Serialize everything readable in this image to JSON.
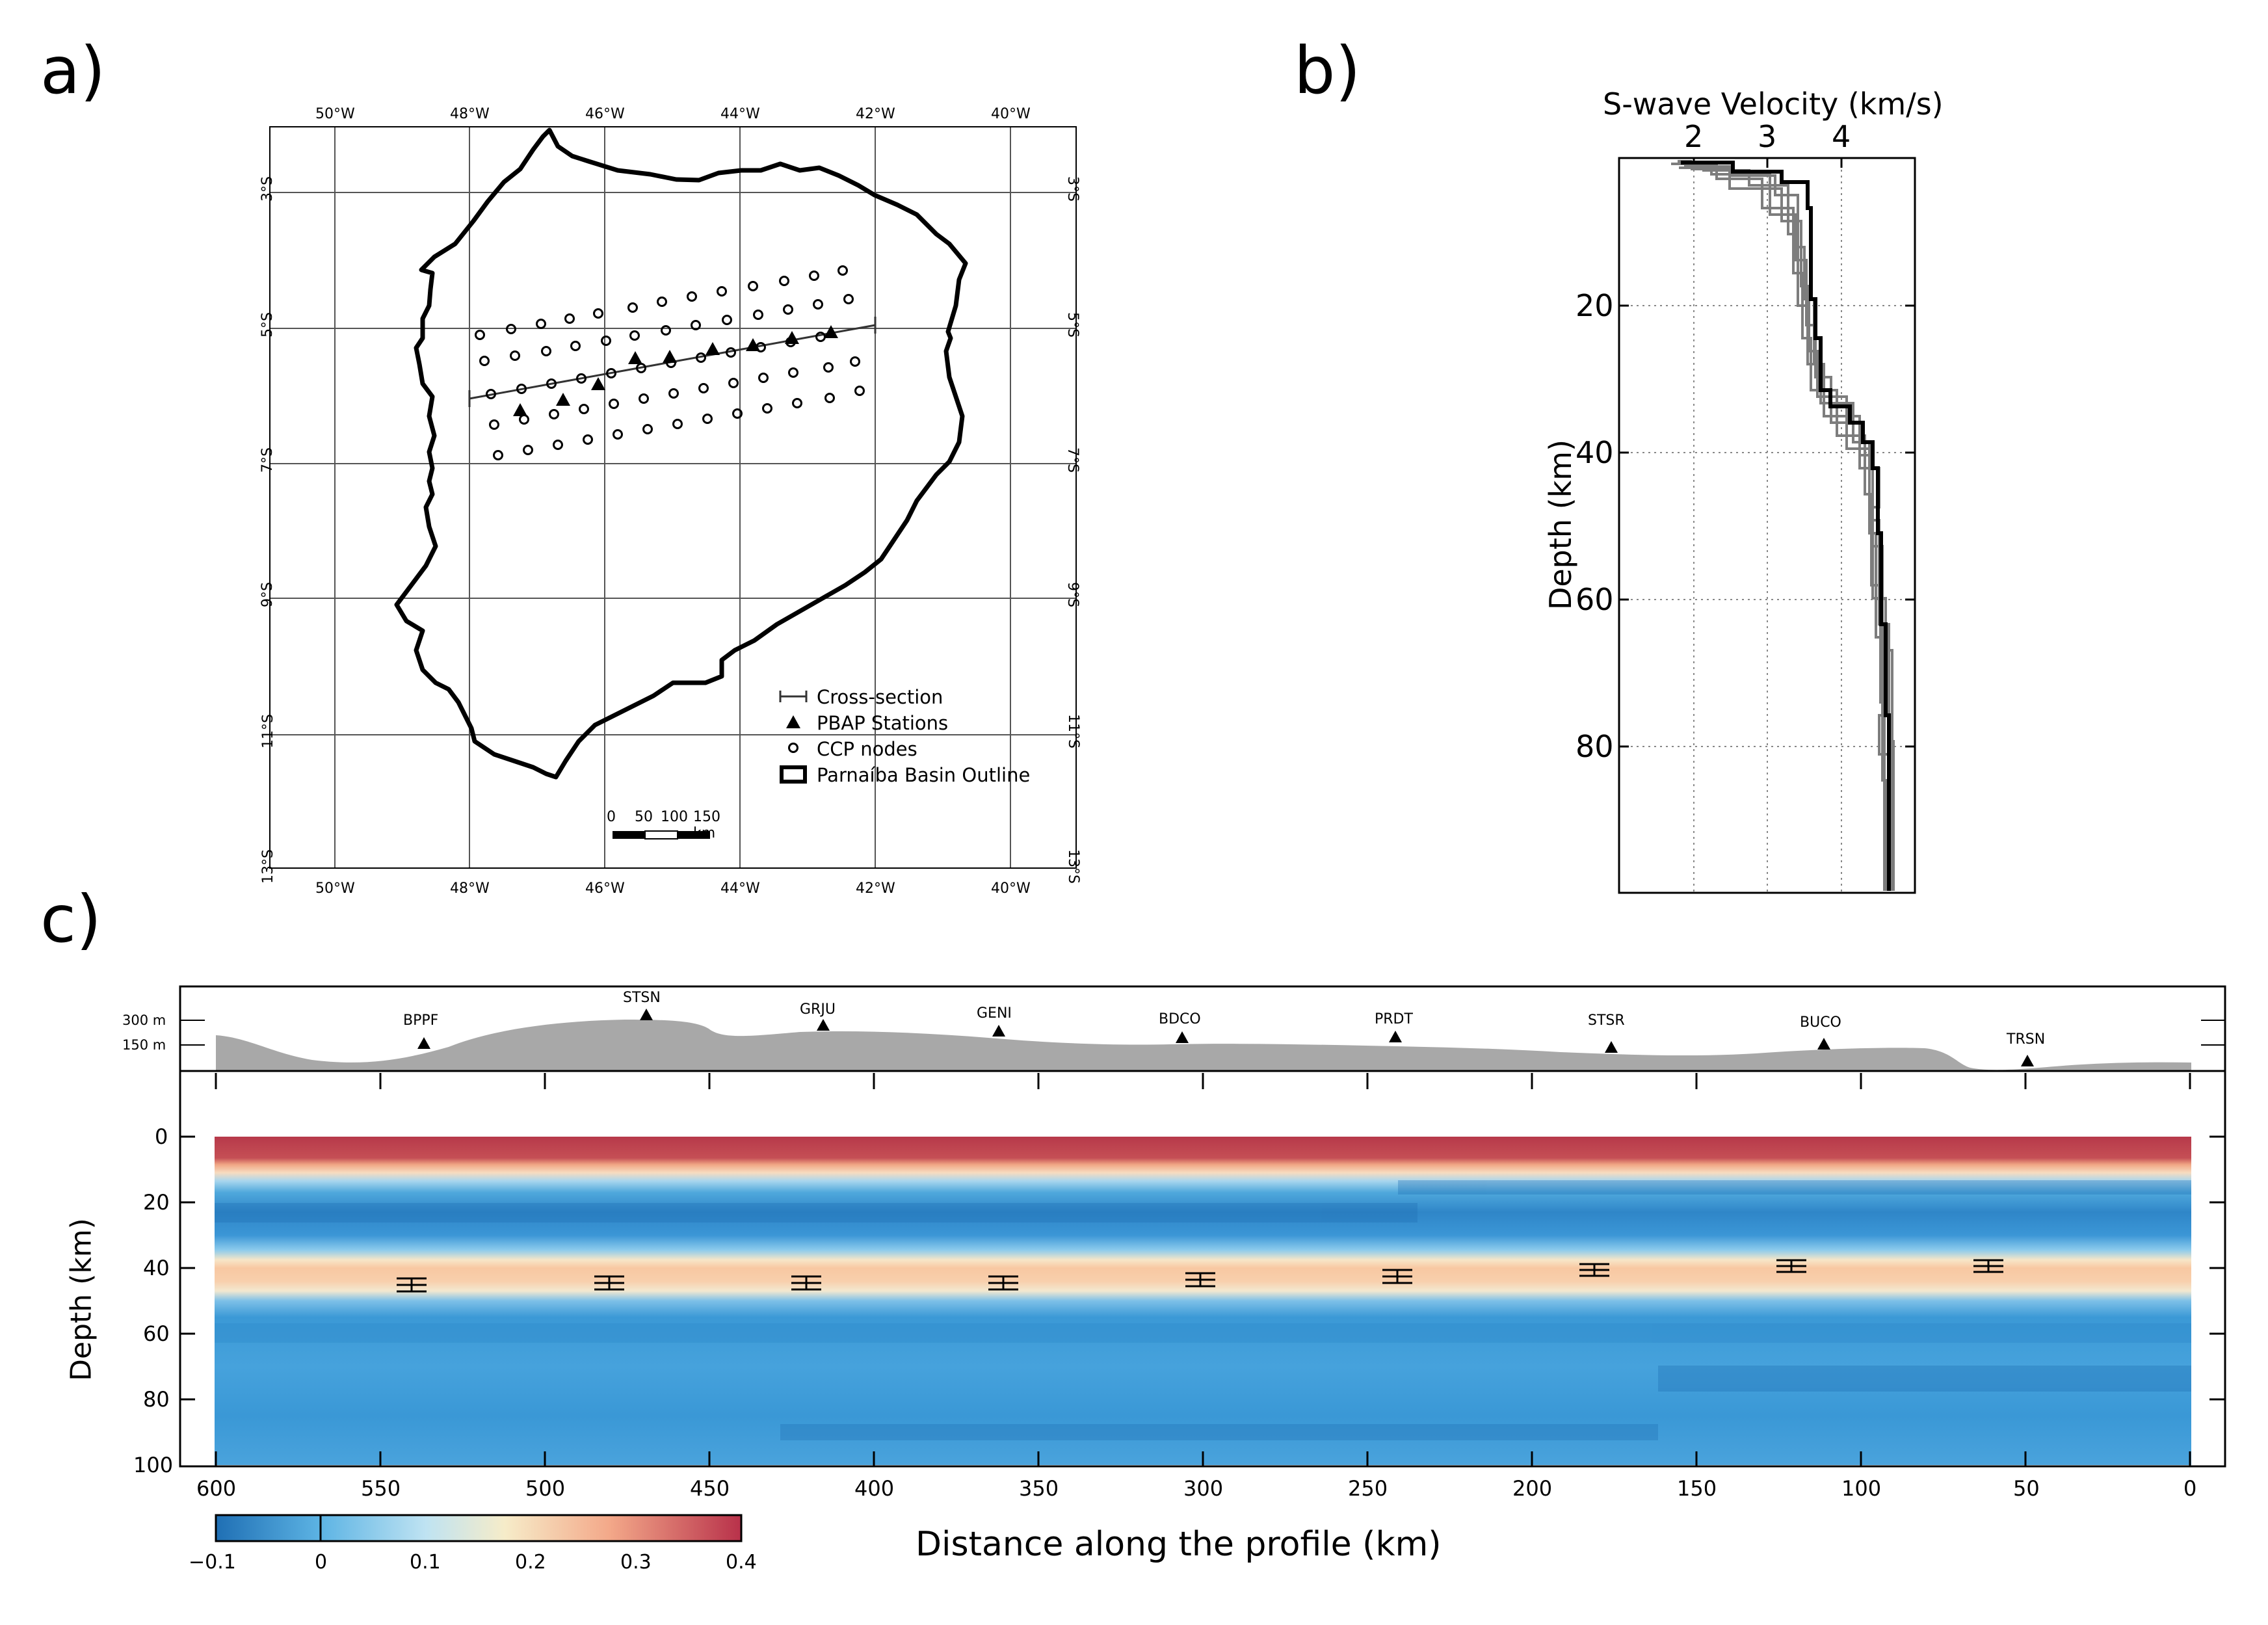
{
  "panels": {
    "a": "a)",
    "b": "b)",
    "c": "c)"
  },
  "map": {
    "lon_labels": [
      "50°W",
      "48°W",
      "46°W",
      "44°W",
      "42°W",
      "40°W"
    ],
    "lat_labels": [
      "3°S",
      "5°S",
      "7°S",
      "9°S",
      "11°S",
      "13°S"
    ],
    "legend": {
      "cross_section": "Cross-section",
      "stations": "PBAP Stations",
      "ccp_nodes": "CCP nodes",
      "basin_outline": "Parnaíba Basin Outline"
    },
    "scalebar": {
      "ticks": [
        "0",
        "50",
        "100",
        "150 km"
      ]
    }
  },
  "velocity": {
    "title": "S-wave Velocity (km/s)",
    "ylabel": "Depth (km)",
    "x_ticks": [
      "2",
      "3",
      "4"
    ],
    "y_ticks": [
      "20",
      "40",
      "60",
      "80"
    ]
  },
  "profile": {
    "elevation_labels": [
      "300 m",
      "150 m"
    ],
    "stations": [
      "BPPF",
      "STSN",
      "GRJU",
      "GENI",
      "BDCO",
      "PRDT",
      "STSR",
      "BUCO",
      "TRSN"
    ],
    "ylabel": "Depth (km)",
    "xlabel": "Distance along the profile (km)",
    "y_ticks": [
      "0",
      "20",
      "40",
      "60",
      "80",
      "100"
    ],
    "x_ticks": [
      "600",
      "550",
      "500",
      "450",
      "400",
      "350",
      "300",
      "250",
      "200",
      "150",
      "100",
      "50",
      "0"
    ],
    "colorbar_ticks": [
      "−0.1",
      "0",
      "0.1",
      "0.2",
      "0.3",
      "0.4"
    ]
  },
  "chart_data": [
    {
      "type": "scatter",
      "xlabel": "",
      "ylabel": "",
      "x_ticks": [
        "50°W",
        "48°W",
        "46°W",
        "44°W",
        "42°W",
        "40°W"
      ],
      "y_ticks": [
        "3°S",
        "5°S",
        "7°S",
        "9°S",
        "11°S",
        "13°S"
      ],
      "xlim": [
        -50,
        -40
      ],
      "ylim": [
        -13,
        -3
      ],
      "legend": [
        "Cross-section",
        "PBAP Stations",
        "CCP nodes",
        "Parnaíba Basin Outline"
      ],
      "grid": true
    },
    {
      "type": "line",
      "title": "S-wave Velocity (km/s)",
      "ylabel": "Depth (km)",
      "xlim": [
        1,
        5
      ],
      "ylim": [
        100,
        0
      ],
      "series": [
        {
          "x": [
            1.9,
            2.6,
            3.5,
            3.6,
            3.6,
            3.7,
            3.75,
            3.9,
            4.1,
            4.3,
            4.5,
            4.6,
            4.65,
            4.7,
            4.75,
            4.75
          ],
          "y": [
            0,
            1,
            3,
            5,
            15,
            20,
            28,
            33,
            36,
            40,
            48,
            60,
            70,
            80,
            90,
            100
          ]
        }
      ],
      "grid": true
    },
    {
      "type": "heatmap",
      "xlabel": "Distance along the profile (km)",
      "ylabel": "Depth (km)",
      "xlim": [
        600,
        0
      ],
      "ylim": [
        100,
        0
      ],
      "colorbar_range": [
        -0.1,
        0.4
      ],
      "stations": [
        "BPPF",
        "STSN",
        "GRJU",
        "GENI",
        "BDCO",
        "PRDT",
        "STSR",
        "BUCO",
        "TRSN"
      ],
      "station_distance_km": [
        535,
        470,
        415,
        362,
        306,
        242,
        176,
        112,
        50
      ],
      "moho_depth_picks": [
        {
          "x": 540,
          "y": 43
        },
        {
          "x": 480,
          "y": 43
        },
        {
          "x": 420,
          "y": 43
        },
        {
          "x": 360,
          "y": 43
        },
        {
          "x": 300,
          "y": 42
        },
        {
          "x": 240,
          "y": 41
        },
        {
          "x": 180,
          "y": 40
        },
        {
          "x": 120,
          "y": 39
        },
        {
          "x": 60,
          "y": 39
        }
      ]
    }
  ]
}
